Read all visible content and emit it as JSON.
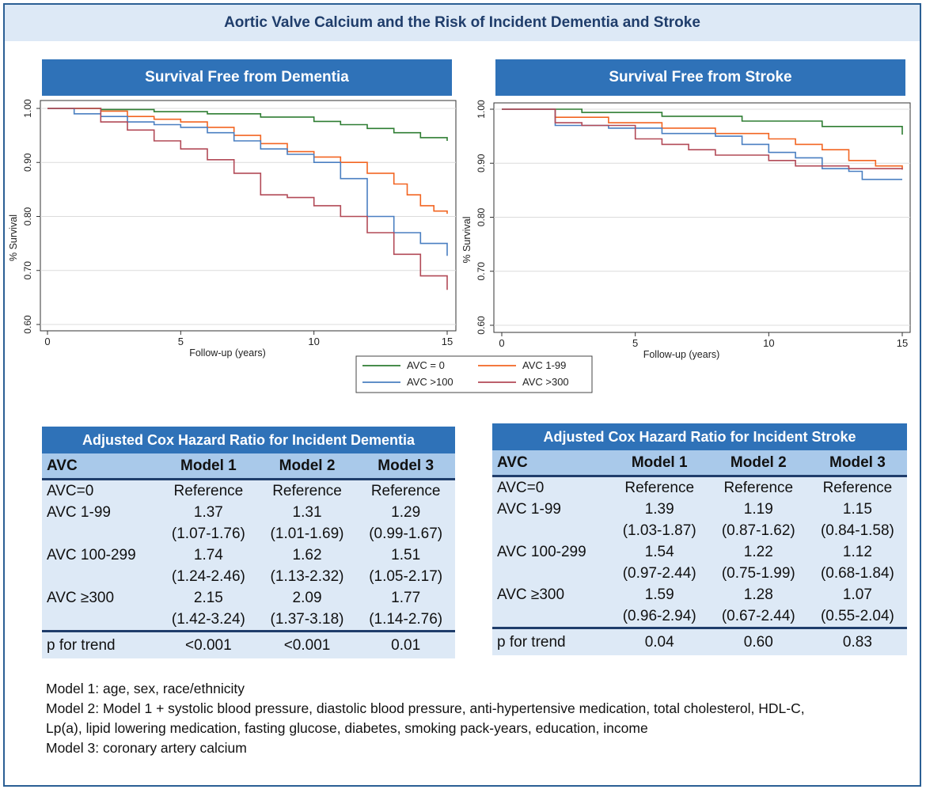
{
  "title": "Aortic Valve Calcium and the Risk of Incident Dementia and Stroke",
  "chart_data": [
    {
      "type": "line",
      "title": "Survival Free from Dementia",
      "xlabel": "Follow-up (years)",
      "ylabel": "% Survival",
      "xlim": [
        0,
        15
      ],
      "ylim": [
        0.6,
        1.0
      ],
      "xticks": [
        "0",
        "5",
        "10",
        "15"
      ],
      "yticks": [
        "0.60",
        "0.70",
        "0.80",
        "0.90",
        "1.00"
      ],
      "grid": true,
      "series": [
        {
          "name": "AVC = 0",
          "color": "#2e7d32",
          "x": [
            0,
            2,
            4,
            6,
            8,
            10,
            11,
            12,
            13,
            14,
            15
          ],
          "y": [
            1.0,
            0.998,
            0.994,
            0.99,
            0.984,
            0.976,
            0.97,
            0.963,
            0.955,
            0.946,
            0.94
          ]
        },
        {
          "name": "AVC 1-99",
          "color": "#f26522",
          "x": [
            0,
            2,
            3,
            4,
            5,
            6,
            7,
            8,
            9,
            10,
            11,
            12,
            13,
            13.5,
            14,
            14.5,
            15
          ],
          "y": [
            1.0,
            0.995,
            0.985,
            0.98,
            0.975,
            0.965,
            0.95,
            0.935,
            0.92,
            0.91,
            0.9,
            0.88,
            0.86,
            0.84,
            0.82,
            0.81,
            0.805
          ]
        },
        {
          "name": "AVC >100",
          "color": "#4a7fc1",
          "x": [
            0,
            1,
            2,
            3,
            4,
            5,
            6,
            7,
            8,
            9,
            10,
            11,
            12,
            13,
            14,
            15
          ],
          "y": [
            1.0,
            0.99,
            0.985,
            0.975,
            0.97,
            0.965,
            0.955,
            0.94,
            0.925,
            0.915,
            0.9,
            0.87,
            0.8,
            0.77,
            0.75,
            0.727
          ]
        },
        {
          "name": "AVC >300",
          "color": "#b24a57",
          "x": [
            0,
            2,
            3,
            4,
            5,
            6,
            7,
            8,
            9,
            10,
            11,
            12,
            13,
            14,
            15
          ],
          "y": [
            1.0,
            0.975,
            0.96,
            0.94,
            0.925,
            0.905,
            0.88,
            0.84,
            0.835,
            0.82,
            0.8,
            0.77,
            0.73,
            0.69,
            0.664
          ]
        }
      ]
    },
    {
      "type": "line",
      "title": "Survival Free from Stroke",
      "xlabel": "Follow-up (years)",
      "ylabel": "% Survival",
      "xlim": [
        0,
        15
      ],
      "ylim": [
        0.6,
        1.0
      ],
      "xticks": [
        "0",
        "5",
        "10",
        "15"
      ],
      "yticks": [
        "0.60",
        "0.70",
        "0.80",
        "0.90",
        "1.00"
      ],
      "grid": true,
      "series": [
        {
          "name": "AVC = 0",
          "color": "#2e7d32",
          "x": [
            0,
            3,
            6,
            9,
            12,
            15
          ],
          "y": [
            1.0,
            0.994,
            0.987,
            0.978,
            0.968,
            0.953
          ]
        },
        {
          "name": "AVC 1-99",
          "color": "#f26522",
          "x": [
            0,
            2,
            4,
            6,
            8,
            10,
            11,
            12,
            13,
            14,
            15
          ],
          "y": [
            1.0,
            0.985,
            0.975,
            0.965,
            0.955,
            0.945,
            0.935,
            0.925,
            0.905,
            0.895,
            0.89
          ]
        },
        {
          "name": "AVC >100",
          "color": "#4a7fc1",
          "x": [
            0,
            2,
            4,
            6,
            8,
            9,
            10,
            11,
            12,
            13,
            13.5,
            15
          ],
          "y": [
            1.0,
            0.97,
            0.965,
            0.955,
            0.95,
            0.935,
            0.92,
            0.91,
            0.89,
            0.885,
            0.87,
            0.87
          ]
        },
        {
          "name": "AVC >300",
          "color": "#b24a57",
          "x": [
            0,
            2,
            3,
            5,
            6,
            7,
            8,
            10,
            11,
            13,
            15
          ],
          "y": [
            1.0,
            0.975,
            0.97,
            0.945,
            0.935,
            0.925,
            0.915,
            0.905,
            0.895,
            0.89,
            0.888
          ]
        }
      ]
    }
  ],
  "legend": [
    {
      "label": "AVC = 0",
      "color": "#2e7d32"
    },
    {
      "label": "AVC 1-99",
      "color": "#f26522"
    },
    {
      "label": "AVC >100",
      "color": "#4a7fc1"
    },
    {
      "label": "AVC >300",
      "color": "#b24a57"
    }
  ],
  "dementia_table": {
    "title": "Adjusted Cox Hazard Ratio for Incident Dementia",
    "headers": [
      "AVC",
      "Model 1",
      "Model 2",
      "Model 3"
    ],
    "rows": [
      [
        "AVC=0",
        "Reference",
        "Reference",
        "Reference"
      ],
      [
        "AVC 1-99",
        "1.37",
        "1.31",
        "1.29"
      ],
      [
        "",
        "(1.07-1.76)",
        "(1.01-1.69)",
        "(0.99-1.67)"
      ],
      [
        "AVC 100-299",
        "1.74",
        "1.62",
        "1.51"
      ],
      [
        "",
        "(1.24-2.46)",
        "(1.13-2.32)",
        "(1.05-2.17)"
      ],
      [
        "AVC ≥300",
        "2.15",
        "2.09",
        "1.77"
      ],
      [
        "",
        "(1.42-3.24)",
        "(1.37-3.18)",
        "(1.14-2.76)"
      ]
    ],
    "trend": [
      "p for trend",
      "<0.001",
      "<0.001",
      "0.01"
    ]
  },
  "stroke_table": {
    "title": "Adjusted Cox Hazard Ratio for Incident Stroke",
    "headers": [
      "AVC",
      "Model 1",
      "Model 2",
      "Model 3"
    ],
    "rows": [
      [
        "AVC=0",
        "Reference",
        "Reference",
        "Reference"
      ],
      [
        "AVC 1-99",
        "1.39",
        "1.19",
        "1.15"
      ],
      [
        "",
        "(1.03-1.87)",
        "(0.87-1.62)",
        "(0.84-1.58)"
      ],
      [
        "AVC 100-299",
        "1.54",
        "1.22",
        "1.12"
      ],
      [
        "",
        "(0.97-2.44)",
        "(0.75-1.99)",
        "(0.68-1.84)"
      ],
      [
        "AVC ≥300",
        "1.59",
        "1.28",
        "1.07"
      ],
      [
        "",
        "(0.96-2.94)",
        "(0.67-2.44)",
        "(0.55-2.04)"
      ]
    ],
    "trend": [
      "p for trend",
      "0.04",
      "0.60",
      "0.83"
    ]
  },
  "notes": [
    "Model 1: age, sex, race/ethnicity",
    "Model 2: Model 1 + systolic blood pressure, diastolic blood pressure, anti-hypertensive medication, total cholesterol, HDL-C,",
    "Lp(a), lipid lowering medication, fasting glucose, diabetes, smoking pack-years, education, income",
    "Model 3: coronary artery calcium"
  ]
}
